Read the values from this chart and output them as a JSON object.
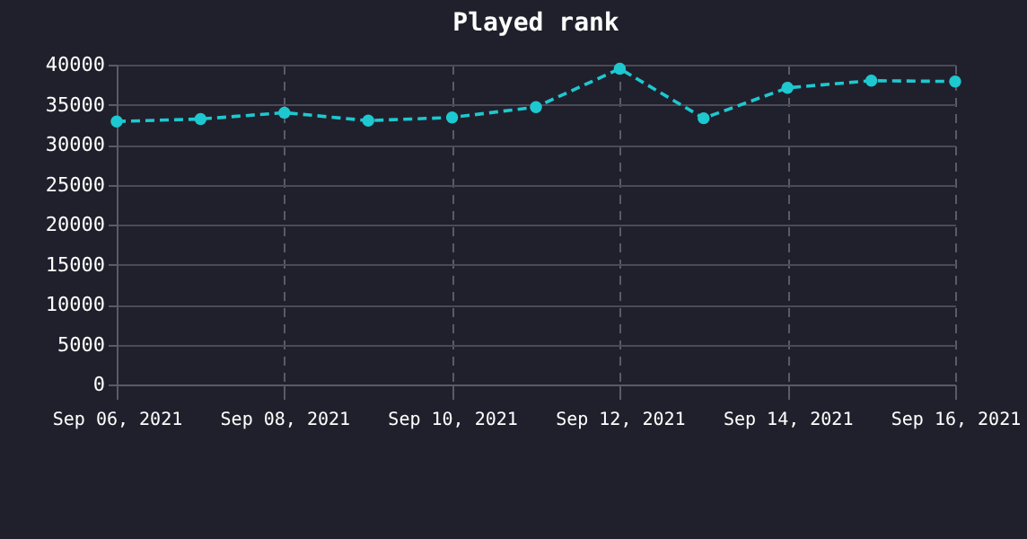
{
  "chart_data": {
    "type": "line",
    "title": "Played rank",
    "x": [
      "2021-09-06",
      "2021-09-07",
      "2021-09-08",
      "2021-09-09",
      "2021-09-10",
      "2021-09-11",
      "2021-09-12",
      "2021-09-13",
      "2021-09-14",
      "2021-09-15",
      "2021-09-16"
    ],
    "series": [
      {
        "color": "#1ec8d0",
        "values": [
          32900,
          33200,
          34000,
          33000,
          33400,
          34700,
          39500,
          33300,
          37100,
          38000,
          37900
        ]
      }
    ],
    "xlim": [
      "2021-09-06",
      "2021-09-16"
    ],
    "xticks": [
      {
        "value": "2021-09-06",
        "label": "Sep 06, 2021"
      },
      {
        "value": "2021-09-08",
        "label": "Sep 08, 2021"
      },
      {
        "value": "2021-09-10",
        "label": "Sep 10, 2021"
      },
      {
        "value": "2021-09-12",
        "label": "Sep 12, 2021"
      },
      {
        "value": "2021-09-14",
        "label": "Sep 14, 2021"
      },
      {
        "value": "2021-09-16",
        "label": "Sep 16, 2021"
      }
    ],
    "ylim": [
      0,
      40000
    ],
    "yticks": [
      0,
      5000,
      10000,
      15000,
      20000,
      25000,
      30000,
      35000,
      40000
    ],
    "grid": true,
    "marker": "circle",
    "line_style": "dashed",
    "legend": false
  }
}
